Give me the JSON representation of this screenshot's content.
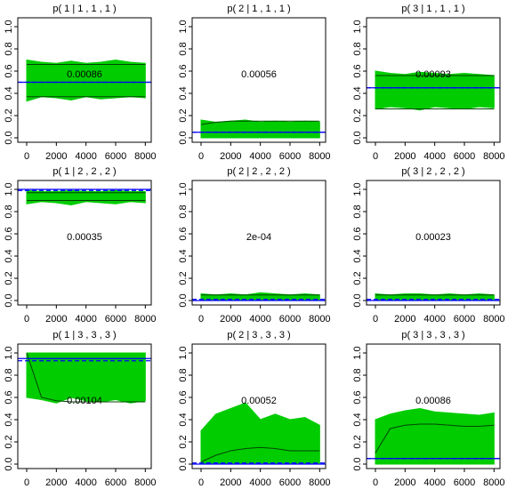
{
  "chart_data": [
    {
      "type": "line",
      "title": "p( 1 | 1 , 1 , 1 )",
      "annotation": "0.00086",
      "x": [
        0,
        1000,
        2000,
        3000,
        4000,
        5000,
        6000,
        7000,
        8000
      ],
      "xlim": [
        -600,
        8400
      ],
      "xticks": [
        0,
        2000,
        4000,
        6000,
        8000
      ],
      "ylim": [
        -0.04,
        1.08
      ],
      "yticks": [
        {
          "value": 0,
          "label": "0.0"
        },
        0.2,
        0.4,
        0.6,
        0.8,
        {
          "value": 1,
          "label": "1.0"
        }
      ],
      "series": [
        {
          "color": "#00cc00",
          "low": [
            0.33,
            0.37,
            0.36,
            0.34,
            0.37,
            0.35,
            0.36,
            0.37,
            0.36
          ],
          "high": [
            0.7,
            0.68,
            0.67,
            0.69,
            0.67,
            0.68,
            0.7,
            0.68,
            0.67
          ]
        },
        {
          "color": "#004400",
          "values": [
            0.66,
            0.66,
            0.66,
            0.66,
            0.66,
            0.66,
            0.66,
            0.66,
            0.66
          ]
        },
        {
          "color": "#004400",
          "values": [
            0.37,
            0.37,
            0.37,
            0.37,
            0.37,
            0.37,
            0.37,
            0.37,
            0.37
          ]
        }
      ],
      "hlines": [
        {
          "value": 0.5,
          "color": "#0000ff"
        },
        {
          "value": 0.5,
          "color": "#0000ff",
          "dash": true
        }
      ]
    },
    {
      "type": "line",
      "title": "p( 2 | 1 , 1 , 1 )",
      "annotation": "0.00056",
      "x": [
        0,
        1000,
        2000,
        3000,
        4000,
        5000,
        6000,
        7000,
        8000
      ],
      "xlim": [
        -600,
        8400
      ],
      "xticks": [
        0,
        2000,
        4000,
        6000,
        8000
      ],
      "ylim": [
        -0.04,
        1.08
      ],
      "yticks": [
        {
          "value": 0,
          "label": "0.0"
        },
        0.2,
        0.4,
        0.6,
        0.8,
        {
          "value": 1,
          "label": "1.0"
        }
      ],
      "series": [
        {
          "color": "#00cc00",
          "low": [
            0,
            0,
            0,
            0,
            0,
            0,
            0,
            0,
            0
          ],
          "high": [
            0.16,
            0.14,
            0.15,
            0.16,
            0.14,
            0.15,
            0.14,
            0.15,
            0.14
          ]
        },
        {
          "color": "#004400",
          "values": [
            0.12,
            0.14,
            0.15,
            0.15,
            0.15,
            0.15,
            0.15,
            0.15,
            0.15
          ]
        }
      ],
      "hlines": [
        {
          "value": 0.05,
          "color": "#0000ff"
        },
        {
          "value": 0.05,
          "color": "#0000ff",
          "dash": true
        }
      ]
    },
    {
      "type": "line",
      "title": "p( 3 | 1 , 1 , 1 )",
      "annotation": "0.00093",
      "x": [
        0,
        1000,
        2000,
        3000,
        4000,
        5000,
        6000,
        7000,
        8000
      ],
      "xlim": [
        -600,
        8400
      ],
      "xticks": [
        0,
        2000,
        4000,
        6000,
        8000
      ],
      "ylim": [
        -0.04,
        1.08
      ],
      "yticks": [
        {
          "value": 0,
          "label": "0.0"
        },
        0.2,
        0.4,
        0.6,
        0.8,
        {
          "value": 1,
          "label": "1.0"
        }
      ],
      "series": [
        {
          "color": "#00cc00",
          "low": [
            0.26,
            0.28,
            0.27,
            0.25,
            0.28,
            0.27,
            0.26,
            0.28,
            0.27
          ],
          "high": [
            0.6,
            0.58,
            0.57,
            0.59,
            0.58,
            0.57,
            0.58,
            0.57,
            0.56
          ]
        },
        {
          "color": "#004400",
          "values": [
            0.56,
            0.56,
            0.56,
            0.56,
            0.56,
            0.56,
            0.56,
            0.56,
            0.56
          ]
        },
        {
          "color": "#004400",
          "values": [
            0.26,
            0.26,
            0.26,
            0.26,
            0.26,
            0.26,
            0.26,
            0.26,
            0.26
          ]
        }
      ],
      "hlines": [
        {
          "value": 0.45,
          "color": "#0000ff"
        },
        {
          "value": 0.45,
          "color": "#0000ff",
          "dash": true
        }
      ]
    },
    {
      "type": "line",
      "title": "p( 1 | 2 , 2 , 2 )",
      "annotation": "0.00035",
      "x": [
        0,
        1000,
        2000,
        3000,
        4000,
        5000,
        6000,
        7000,
        8000
      ],
      "xlim": [
        -600,
        8400
      ],
      "xticks": [
        0,
        2000,
        4000,
        6000,
        8000
      ],
      "ylim": [
        -0.04,
        1.08
      ],
      "yticks": [
        {
          "value": 0,
          "label": "0.0"
        },
        0.2,
        0.4,
        0.6,
        0.8,
        {
          "value": 1,
          "label": "1.0"
        }
      ],
      "series": [
        {
          "color": "#00cc00",
          "low": [
            0.87,
            0.89,
            0.88,
            0.86,
            0.89,
            0.88,
            0.87,
            0.89,
            0.88
          ],
          "high": [
            0.99,
            0.98,
            0.98,
            0.99,
            0.98,
            0.98,
            0.99,
            0.98,
            0.98
          ]
        },
        {
          "color": "#004400",
          "values": [
            0.97,
            0.97,
            0.97,
            0.97,
            0.97,
            0.97,
            0.97,
            0.97,
            0.97
          ]
        },
        {
          "color": "#004400",
          "values": [
            0.9,
            0.9,
            0.9,
            0.9,
            0.9,
            0.9,
            0.9,
            0.9,
            0.9
          ]
        }
      ],
      "hlines": [
        {
          "value": 1,
          "color": "#0000ff"
        },
        {
          "value": 0.99,
          "color": "#0000ff",
          "dash": true
        }
      ]
    },
    {
      "type": "line",
      "title": "p( 2 | 2 , 2 , 2 )",
      "annotation": "2e-04",
      "x": [
        0,
        1000,
        2000,
        3000,
        4000,
        5000,
        6000,
        7000,
        8000
      ],
      "xlim": [
        -600,
        8400
      ],
      "xticks": [
        0,
        2000,
        4000,
        6000,
        8000
      ],
      "ylim": [
        -0.04,
        1.08
      ],
      "yticks": [
        {
          "value": 0,
          "label": "0.0"
        },
        0.2,
        0.4,
        0.6,
        0.8,
        {
          "value": 1,
          "label": "1.0"
        }
      ],
      "series": [
        {
          "color": "#00cc00",
          "low": [
            0,
            0,
            0,
            0,
            0,
            0,
            0,
            0,
            0
          ],
          "high": [
            0.06,
            0.05,
            0.06,
            0.05,
            0.07,
            0.06,
            0.05,
            0.06,
            0.05
          ]
        },
        {
          "color": "#004400",
          "values": [
            0.05,
            0.05,
            0.05,
            0.05,
            0.05,
            0.05,
            0.05,
            0.05,
            0.05
          ]
        }
      ],
      "hlines": [
        {
          "value": 0,
          "color": "#0000ff"
        },
        {
          "value": 0.01,
          "color": "#0000ff",
          "dash": true
        }
      ]
    },
    {
      "type": "line",
      "title": "p( 3 | 2 , 2 , 2 )",
      "annotation": "0.00023",
      "x": [
        0,
        1000,
        2000,
        3000,
        4000,
        5000,
        6000,
        7000,
        8000
      ],
      "xlim": [
        -600,
        8400
      ],
      "xticks": [
        0,
        2000,
        4000,
        6000,
        8000
      ],
      "ylim": [
        -0.04,
        1.08
      ],
      "yticks": [
        {
          "value": 0,
          "label": "0.0"
        },
        0.2,
        0.4,
        0.6,
        0.8,
        {
          "value": 1,
          "label": "1.0"
        }
      ],
      "series": [
        {
          "color": "#00cc00",
          "low": [
            0,
            0,
            0,
            0,
            0,
            0,
            0,
            0,
            0
          ],
          "high": [
            0.06,
            0.05,
            0.06,
            0.06,
            0.05,
            0.06,
            0.05,
            0.06,
            0.05
          ]
        },
        {
          "color": "#004400",
          "values": [
            0.05,
            0.05,
            0.05,
            0.05,
            0.05,
            0.05,
            0.05,
            0.05,
            0.05
          ]
        }
      ],
      "hlines": [
        {
          "value": 0,
          "color": "#0000ff"
        },
        {
          "value": 0.01,
          "color": "#0000ff",
          "dash": true
        }
      ]
    },
    {
      "type": "line",
      "title": "p( 1 | 3 , 3 , 3 )",
      "annotation": "0.00104",
      "x": [
        0,
        1000,
        2000,
        3000,
        4000,
        5000,
        6000,
        7000,
        8000
      ],
      "xlim": [
        -600,
        8400
      ],
      "xticks": [
        0,
        2000,
        4000,
        6000,
        8000
      ],
      "ylim": [
        -0.04,
        1.08
      ],
      "yticks": [
        {
          "value": 0,
          "label": "0.0"
        },
        0.2,
        0.4,
        0.6,
        0.8,
        {
          "value": 1,
          "label": "1.0"
        }
      ],
      "series": [
        {
          "color": "#00cc00",
          "low": [
            0.6,
            0.58,
            0.55,
            0.6,
            0.57,
            0.56,
            0.58,
            0.55,
            0.57
          ],
          "high": [
            1,
            1,
            1,
            1,
            1,
            1,
            1,
            1,
            1
          ]
        },
        {
          "color": "#004400",
          "values": [
            1,
            0.6,
            0.57,
            0.56,
            0.56,
            0.56,
            0.56,
            0.56,
            0.56
          ]
        }
      ],
      "hlines": [
        {
          "value": 0.95,
          "color": "#0000ff"
        },
        {
          "value": 0.93,
          "color": "#0000ff",
          "dash": true
        }
      ]
    },
    {
      "type": "line",
      "title": "p( 2 | 3 , 3 , 3 )",
      "annotation": "0.00052",
      "x": [
        0,
        1000,
        2000,
        3000,
        4000,
        5000,
        6000,
        7000,
        8000
      ],
      "xlim": [
        -600,
        8400
      ],
      "xticks": [
        0,
        2000,
        4000,
        6000,
        8000
      ],
      "ylim": [
        -0.04,
        1.08
      ],
      "yticks": [
        {
          "value": 0,
          "label": "0.0"
        },
        0.2,
        0.4,
        0.6,
        0.8,
        {
          "value": 1,
          "label": "1.0"
        }
      ],
      "series": [
        {
          "color": "#00cc00",
          "low": [
            0,
            0,
            0,
            0,
            0,
            0,
            0,
            0,
            0
          ],
          "high": [
            0.3,
            0.45,
            0.5,
            0.55,
            0.4,
            0.45,
            0.4,
            0.42,
            0.35
          ]
        },
        {
          "color": "#004400",
          "values": [
            0.02,
            0.08,
            0.12,
            0.14,
            0.15,
            0.14,
            0.12,
            0.12,
            0.12
          ]
        }
      ],
      "hlines": [
        {
          "value": 0,
          "color": "#0000ff"
        },
        {
          "value": 0.01,
          "color": "#0000ff",
          "dash": true
        }
      ]
    },
    {
      "type": "line",
      "title": "p( 3 | 3 , 3 , 3 )",
      "annotation": "0.00086",
      "x": [
        0,
        1000,
        2000,
        3000,
        4000,
        5000,
        6000,
        7000,
        8000
      ],
      "xlim": [
        -600,
        8400
      ],
      "xticks": [
        0,
        2000,
        4000,
        6000,
        8000
      ],
      "ylim": [
        -0.04,
        1.08
      ],
      "yticks": [
        {
          "value": 0,
          "label": "0.0"
        },
        0.2,
        0.4,
        0.6,
        0.8,
        {
          "value": 1,
          "label": "1.0"
        }
      ],
      "series": [
        {
          "color": "#00cc00",
          "low": [
            0,
            0,
            0,
            0,
            0,
            0,
            0,
            0,
            0
          ],
          "high": [
            0.4,
            0.45,
            0.48,
            0.5,
            0.47,
            0.46,
            0.45,
            0.44,
            0.46
          ]
        },
        {
          "color": "#004400",
          "values": [
            0.1,
            0.32,
            0.35,
            0.36,
            0.36,
            0.35,
            0.34,
            0.34,
            0.35
          ]
        }
      ],
      "hlines": [
        {
          "value": 0.05,
          "color": "#0000ff"
        },
        {
          "value": 0.05,
          "color": "#0000ff",
          "dash": true
        }
      ]
    }
  ]
}
